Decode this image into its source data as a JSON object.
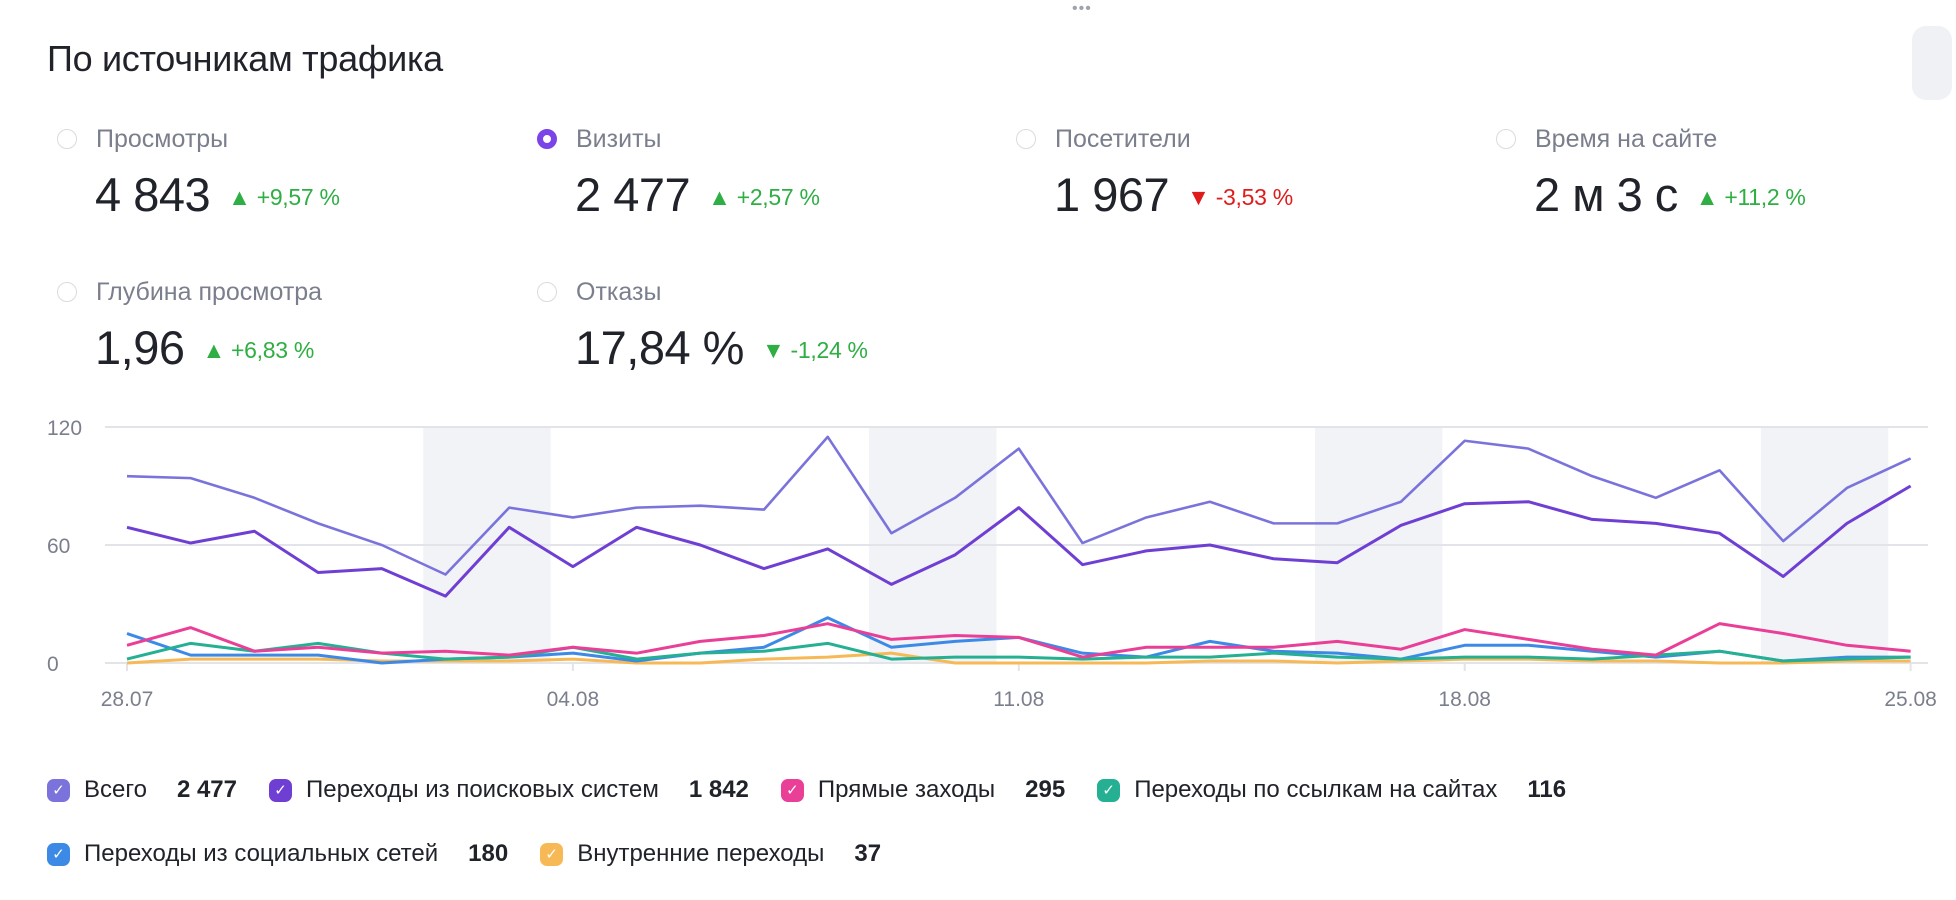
{
  "drag_handle": "•••",
  "title": "По источникам трафика",
  "metrics": [
    {
      "label": "Просмотры",
      "value": "4 843",
      "change": "+9,57 %",
      "direction": "up",
      "selected": false
    },
    {
      "label": "Визиты",
      "value": "2 477",
      "change": "+2,57 %",
      "direction": "up",
      "selected": true
    },
    {
      "label": "Посетители",
      "value": "1 967",
      "change": "-3,53 %",
      "direction": "down",
      "selected": false
    },
    {
      "label": "Время на сайте",
      "value": "2 м 3 с",
      "change": "+11,2 %",
      "direction": "up",
      "selected": false
    },
    {
      "label": "Глубина просмотра",
      "value": "1,96",
      "change": "+6,83 %",
      "direction": "up",
      "selected": false
    },
    {
      "label": "Отказы",
      "value": "17,84 %",
      "change": "-1,24 %",
      "direction": "down-good",
      "selected": false
    }
  ],
  "icons": {
    "arrow_up": "▲",
    "arrow_down": "▼",
    "check": "✓"
  },
  "colors": {
    "up": "#2fae43",
    "down": "#e01b1b",
    "selected": "#7b44e8",
    "weekend": "#f2f3f7",
    "grid": "#e3e4ea"
  },
  "chart_data": {
    "type": "line",
    "x": [
      "28.07",
      "29.07",
      "30.07",
      "31.07",
      "01.08",
      "02.08",
      "03.08",
      "04.08",
      "05.08",
      "06.08",
      "07.08",
      "08.08",
      "09.08",
      "10.08",
      "11.08",
      "12.08",
      "13.08",
      "14.08",
      "15.08",
      "16.08",
      "17.08",
      "18.08",
      "19.08",
      "20.08",
      "21.08",
      "22.08",
      "23.08",
      "24.08",
      "25.08"
    ],
    "x_tick_labels": [
      "28.07",
      "04.08",
      "11.08",
      "18.08",
      "25.08"
    ],
    "y_tick_labels": [
      "0",
      "60",
      "120"
    ],
    "ylim": [
      0,
      120
    ],
    "grid": true,
    "weekend_shading": [
      [
        "02.08",
        "03.08"
      ],
      [
        "09.08",
        "10.08"
      ],
      [
        "16.08",
        "17.08"
      ],
      [
        "23.08",
        "24.08"
      ]
    ],
    "series": [
      {
        "name": "Всего",
        "total": "2 477",
        "color": "#7b73dc",
        "values": [
          95,
          94,
          84,
          71,
          60,
          45,
          79,
          74,
          79,
          80,
          78,
          115,
          66,
          84,
          109,
          61,
          74,
          82,
          71,
          71,
          82,
          113,
          109,
          95,
          84,
          98,
          62,
          89,
          104
        ]
      },
      {
        "name": "Переходы из поисковых систем",
        "total": "1 842",
        "color": "#6f3fd4",
        "values": [
          69,
          61,
          67,
          46,
          48,
          34,
          69,
          49,
          69,
          60,
          48,
          58,
          40,
          55,
          79,
          50,
          57,
          60,
          53,
          51,
          70,
          81,
          82,
          73,
          71,
          66,
          44,
          71,
          90
        ]
      },
      {
        "name": "Прямые заходы",
        "total": "295",
        "color": "#ea3f97",
        "values": [
          9,
          18,
          6,
          8,
          5,
          6,
          4,
          8,
          5,
          11,
          14,
          20,
          12,
          14,
          13,
          3,
          8,
          8,
          8,
          11,
          7,
          17,
          12,
          7,
          4,
          20,
          15,
          9,
          6
        ]
      },
      {
        "name": "Переходы по ссылкам на сайтах",
        "total": "116",
        "color": "#25b093",
        "values": [
          2,
          10,
          6,
          10,
          5,
          2,
          3,
          8,
          2,
          5,
          6,
          10,
          2,
          3,
          3,
          2,
          3,
          3,
          5,
          3,
          2,
          3,
          3,
          2,
          4,
          6,
          1,
          2,
          3
        ]
      },
      {
        "name": "Переходы из социальных сетей",
        "total": "180",
        "color": "#3d8ae6",
        "values": [
          15,
          4,
          4,
          4,
          0,
          2,
          3,
          5,
          1,
          5,
          8,
          23,
          8,
          11,
          13,
          5,
          3,
          11,
          6,
          5,
          2,
          9,
          9,
          6,
          3,
          6,
          1,
          3,
          3
        ]
      },
      {
        "name": "Внутренние переходы",
        "total": "37",
        "color": "#f7b955",
        "values": [
          0,
          2,
          2,
          2,
          1,
          1,
          1,
          2,
          0,
          0,
          2,
          3,
          5,
          0,
          0,
          0,
          0,
          1,
          1,
          0,
          1,
          2,
          2,
          1,
          1,
          0,
          0,
          1,
          1
        ]
      }
    ]
  }
}
